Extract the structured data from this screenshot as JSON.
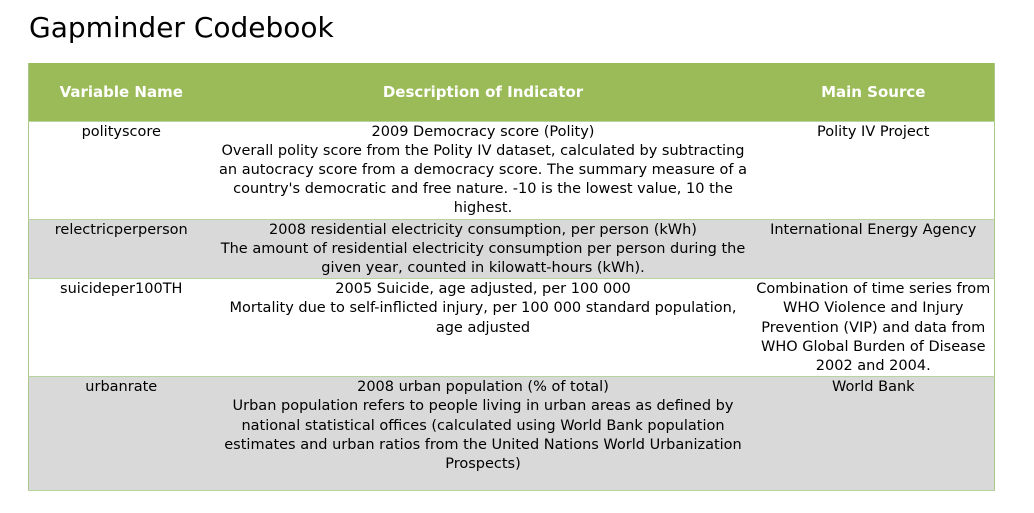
{
  "page": {
    "title": "Gapminder Codebook"
  },
  "table": {
    "headers": [
      "Variable Name",
      "Description of Indicator",
      "Main Source"
    ],
    "header_color": "#9bbb59",
    "stripe_color": "#d9d9d9",
    "rows": [
      {
        "variable": "polityscore",
        "description_title": "2009 Democracy score (Polity)",
        "description_body": "Overall polity score from the Polity IV dataset, calculated by subtracting an autocracy score from a democracy score. The summary measure of a country's democratic and free nature. -10 is the lowest value, 10 the highest.",
        "source": "Polity IV Project"
      },
      {
        "variable": "relectricperperson",
        "description_title": "2008 residential electricity consumption, per person (kWh)",
        "description_body": "The amount of residential electricity consumption per person during the given year, counted in kilowatt-hours (kWh).",
        "source": "International Energy Agency"
      },
      {
        "variable": "suicideper100TH",
        "description_title": "2005 Suicide, age adjusted, per 100 000",
        "description_body": "Mortality due to self-inflicted injury, per 100 000 standard population, age adjusted",
        "source": "Combination of time series from WHO Violence and Injury Prevention (VIP) and data from WHO Global Burden of Disease 2002 and 2004."
      },
      {
        "variable": "urbanrate",
        "description_title": "2008 urban population (% of total)",
        "description_body": "Urban population refers to people living in urban areas as defined by national statistical offices (calculated using World Bank population estimates and urban ratios from the United Nations World Urbanization Prospects)",
        "source": "World Bank"
      }
    ]
  }
}
